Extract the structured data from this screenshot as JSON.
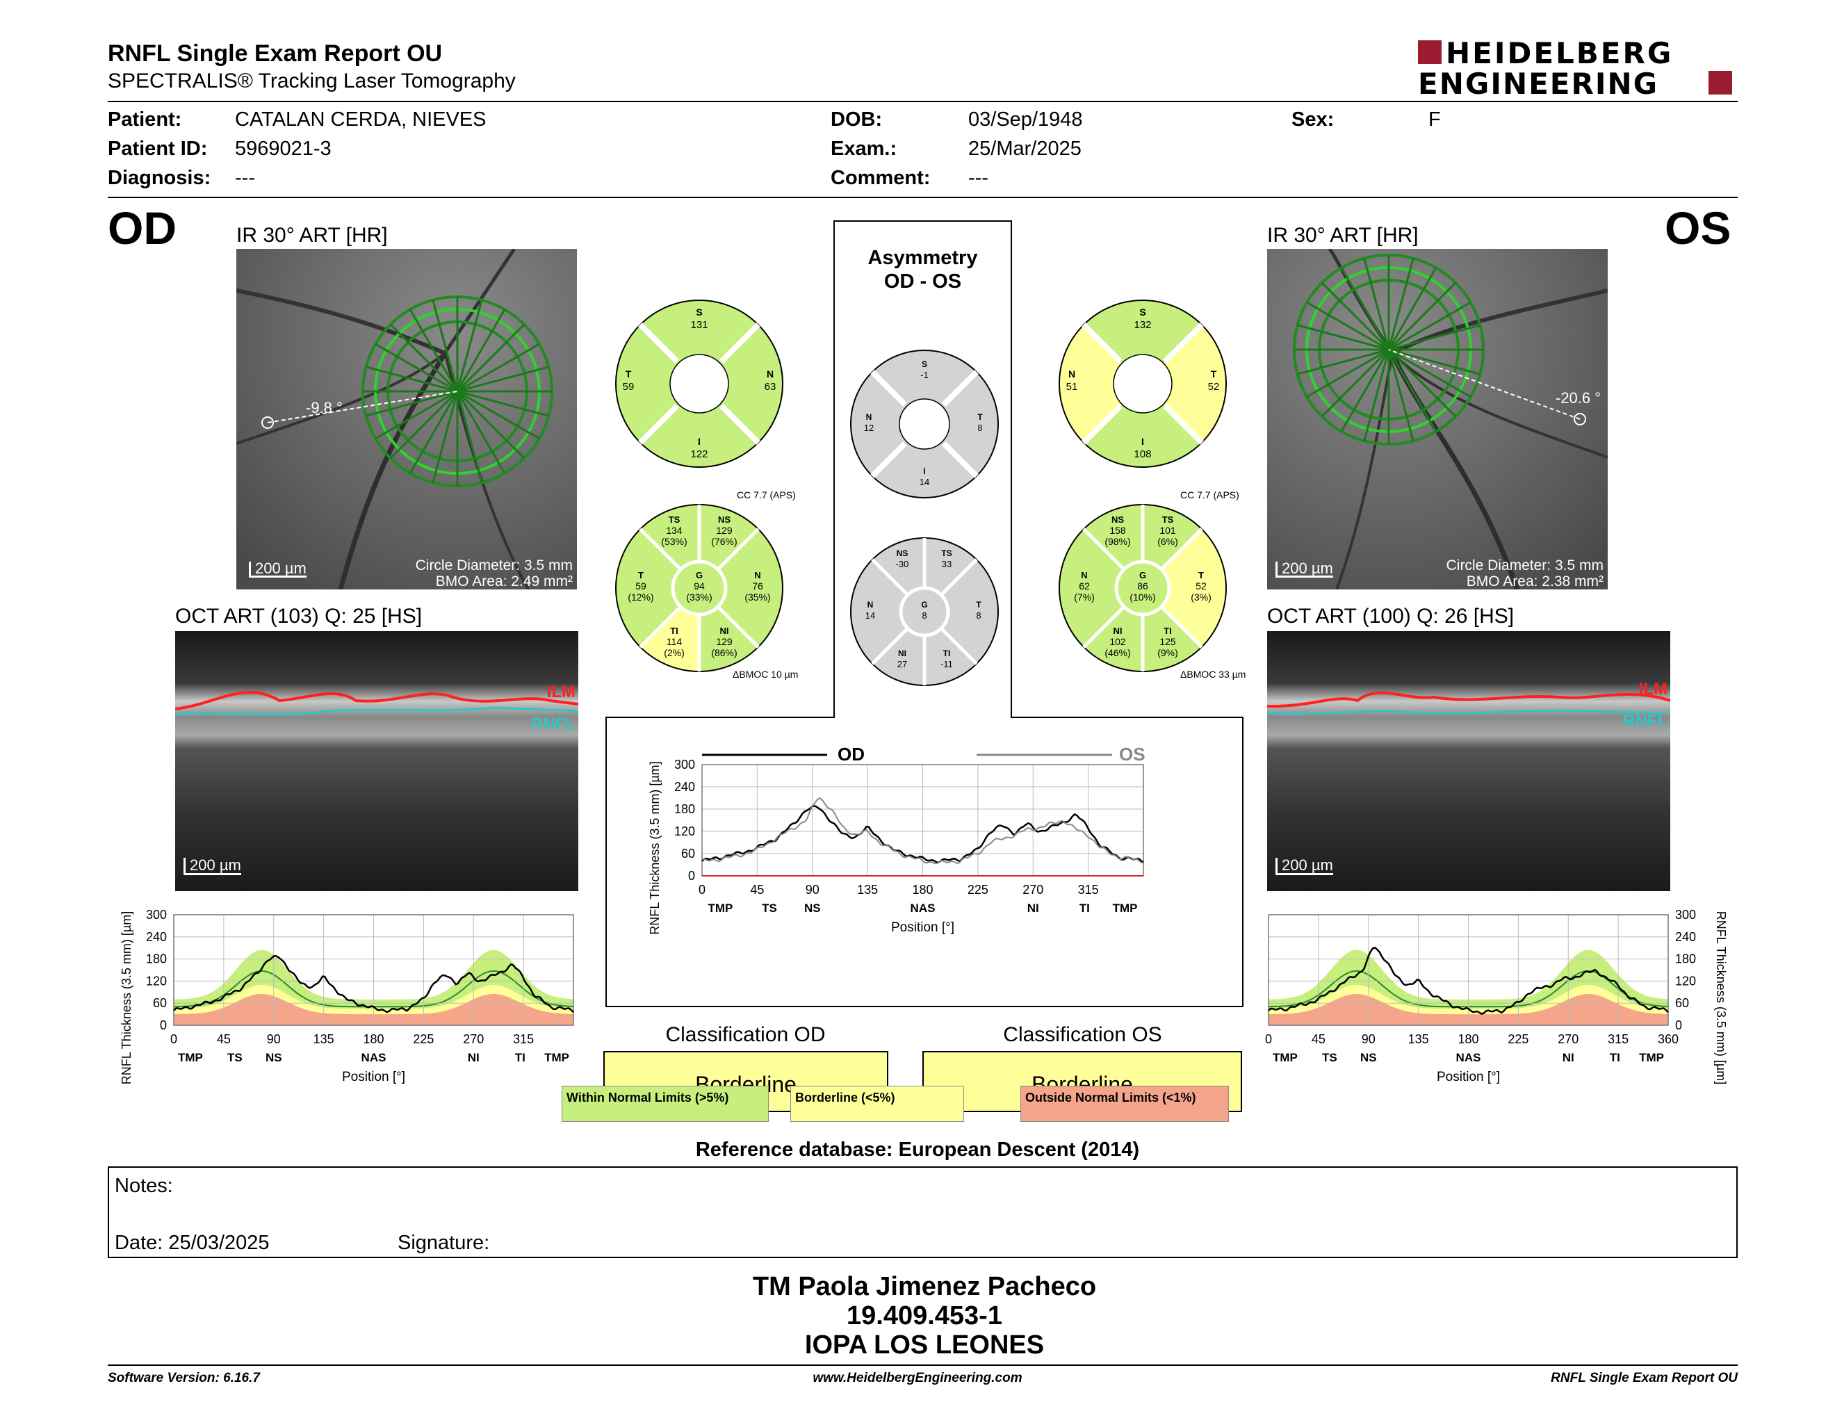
{
  "header": {
    "title": "RNFL Single Exam Report OU",
    "subtitle": "SPECTRALIS® Tracking Laser Tomography",
    "logo_top": "HEIDELBERG",
    "logo_bottom": "ENGINEERING"
  },
  "patient": {
    "patient_label": "Patient:",
    "patient_value": "CATALAN CERDA, NIEVES",
    "id_label": "Patient ID:",
    "id_value": "5969021-3",
    "diag_label": "Diagnosis:",
    "diag_value": "---",
    "dob_label": "DOB:",
    "dob_value": "03/Sep/1948",
    "exam_label": "Exam.:",
    "exam_value": "25/Mar/2025",
    "comment_label": "Comment:",
    "comment_value": "---",
    "sex_label": "Sex:",
    "sex_value": "F"
  },
  "od": {
    "eye": "OD",
    "ir_label": "IR 30° ART [HR]",
    "angle": "-9.8 °",
    "scale": "200 µm",
    "circle": "Circle Diameter: 3.5 mm",
    "bmo": "BMO Area: 2.49 mm²",
    "oct_label": "OCT ART (103) Q: 25 [HS]",
    "ilm": "ILM",
    "rnfl": "RNFL",
    "oct_scale": "200 µm",
    "sectors4": {
      "S": "131",
      "T": "59",
      "N": "63",
      "I": "122"
    },
    "sectors6": {
      "TS": "134",
      "TS_pct": "(53%)",
      "NS": "129",
      "NS_pct": "(76%)",
      "T": "59",
      "T_pct": "(12%)",
      "G": "94",
      "G_pct": "(33%)",
      "N": "76",
      "N_pct": "(35%)",
      "TI": "114",
      "TI_pct": "(2%)",
      "NI": "129",
      "NI_pct": "(86%)"
    },
    "cc": "CC 7.7 (APS)",
    "bmoc": "ΔBMOC 10 µm"
  },
  "os": {
    "eye": "OS",
    "ir_label": "IR 30° ART [HR]",
    "angle": "-20.6 °",
    "scale": "200 µm",
    "circle": "Circle Diameter: 3.5 mm",
    "bmo": "BMO Area: 2.38 mm²",
    "oct_label": "OCT ART (100) Q: 26 [HS]",
    "ilm": "ILM",
    "rnfl": "RNFL",
    "oct_scale": "200 µm",
    "sectors4": {
      "S": "132",
      "N": "51",
      "T": "52",
      "I": "108"
    },
    "sectors6": {
      "NS": "158",
      "NS_pct": "(98%)",
      "TS": "101",
      "TS_pct": "(6%)",
      "N": "62",
      "N_pct": "(7%)",
      "G": "86",
      "G_pct": "(10%)",
      "T": "52",
      "T_pct": "(3%)",
      "NI": "102",
      "NI_pct": "(46%)",
      "TI": "125",
      "TI_pct": "(9%)"
    },
    "cc": "CC 7.7 (APS)",
    "bmoc": "ΔBMOC 33 µm"
  },
  "asym": {
    "title1": "Asymmetry",
    "title2": "OD - OS",
    "sectors4": {
      "S": "-1",
      "N": "12",
      "T": "8",
      "I": "14"
    },
    "sectors6": {
      "NS": "-30",
      "TS": "33",
      "N": "14",
      "G": "8",
      "T": "8",
      "NI": "27",
      "TI": "-11"
    },
    "legend_od": "OD",
    "legend_os": "OS"
  },
  "chart_common": {
    "ylabel": "RNFL Thickness (3.5 mm) [µm]",
    "xlabel": "Position [°]",
    "yticks": [
      "0",
      "60",
      "120",
      "180",
      "240",
      "300"
    ],
    "xticks_od": [
      "0",
      "45",
      "90",
      "135",
      "180",
      "225",
      "270",
      "315"
    ],
    "xticks_os": [
      "0",
      "45",
      "90",
      "135",
      "180",
      "225",
      "270",
      "315",
      "360"
    ],
    "xticks_center": [
      "0",
      "45",
      "90",
      "135",
      "180",
      "225",
      "270",
      "315"
    ],
    "region_od": [
      "TMP",
      "TS",
      "NS",
      "NAS",
      "NI",
      "TI",
      "TMP"
    ],
    "region_os": [
      "TMP",
      "TS",
      "NS",
      "NAS",
      "NI",
      "TI",
      "TMP"
    ],
    "region_center": [
      "TMP",
      "TS",
      "NS",
      "NAS",
      "NI",
      "TI",
      "TMP"
    ]
  },
  "chart_data": [
    {
      "type": "line",
      "name_ref": "od-profile",
      "x": [
        0,
        15,
        30,
        45,
        60,
        75,
        85,
        95,
        105,
        115,
        125,
        135,
        145,
        155,
        165,
        180,
        195,
        210,
        225,
        235,
        245,
        255,
        265,
        275,
        285,
        295,
        305,
        315,
        325,
        340,
        360
      ],
      "series": [
        {
          "values": [
            40,
            50,
            60,
            75,
            100,
            140,
            180,
            185,
            150,
            110,
            105,
            130,
            100,
            70,
            60,
            45,
            40,
            45,
            70,
            120,
            135,
            115,
            140,
            120,
            130,
            145,
            165,
            130,
            80,
            50,
            40
          ]
        }
      ],
      "ylim": [
        0,
        300
      ],
      "xlim": [
        0,
        360
      ]
    },
    {
      "type": "line",
      "name_ref": "os-profile",
      "x": [
        0,
        15,
        30,
        45,
        60,
        75,
        85,
        95,
        105,
        115,
        125,
        135,
        145,
        155,
        165,
        180,
        195,
        210,
        225,
        235,
        245,
        255,
        265,
        275,
        285,
        295,
        305,
        315,
        325,
        340,
        360
      ],
      "series": [
        {
          "values": [
            40,
            45,
            55,
            70,
            100,
            130,
            150,
            215,
            180,
            130,
            110,
            120,
            90,
            70,
            55,
            40,
            35,
            40,
            60,
            90,
            100,
            110,
            125,
            130,
            140,
            150,
            125,
            110,
            75,
            50,
            40
          ]
        }
      ],
      "ylim": [
        0,
        300
      ],
      "xlim": [
        0,
        360
      ]
    },
    {
      "type": "line",
      "name_ref": "asymmetry-comparison",
      "x": [
        0,
        15,
        30,
        45,
        60,
        75,
        85,
        95,
        105,
        115,
        125,
        135,
        145,
        155,
        165,
        180,
        195,
        210,
        225,
        235,
        245,
        255,
        265,
        275,
        285,
        295,
        305,
        315,
        325,
        340,
        360
      ],
      "series": [
        {
          "name": "OD",
          "values": [
            40,
            50,
            60,
            75,
            100,
            140,
            180,
            185,
            150,
            110,
            105,
            130,
            100,
            70,
            60,
            45,
            40,
            45,
            70,
            120,
            135,
            115,
            140,
            120,
            130,
            145,
            165,
            130,
            80,
            50,
            40
          ]
        },
        {
          "name": "OS",
          "values": [
            40,
            45,
            55,
            70,
            100,
            130,
            150,
            215,
            180,
            130,
            110,
            120,
            90,
            70,
            55,
            40,
            35,
            40,
            60,
            90,
            100,
            110,
            125,
            130,
            140,
            150,
            125,
            110,
            75,
            50,
            40
          ]
        }
      ],
      "ylim": [
        0,
        300
      ],
      "xlim": [
        0,
        360
      ]
    }
  ],
  "classification": {
    "od_title": "Classification OD",
    "od_value": "Borderline",
    "os_title": "Classification OS",
    "os_value": "Borderline",
    "legend_green": "Within Normal Limits (>5%)",
    "legend_yellow": "Borderline (<5%)",
    "legend_red": "Outside Normal Limits (<1%)"
  },
  "reference": "Reference database: European Descent (2014)",
  "notes": {
    "label": "Notes:",
    "date": "Date: 25/03/2025",
    "signature": "Signature:"
  },
  "signer": {
    "name": "TM Paola Jimenez Pacheco",
    "id": "19.409.453-1",
    "org": "IOPA LOS LEONES"
  },
  "footer": {
    "software": "Software Version: 6.16.7",
    "url": "www.HeidelbergEngineering.com",
    "report": "RNFL Single Exam Report OU"
  },
  "colors": {
    "green": "#c6ef7e",
    "yellow": "#ffff99",
    "red": "#f4a58a",
    "grey": "#d3d3d3",
    "accent": "#9b1b30",
    "ilm": "#ff2020",
    "rnfl": "#2fc6c6"
  }
}
